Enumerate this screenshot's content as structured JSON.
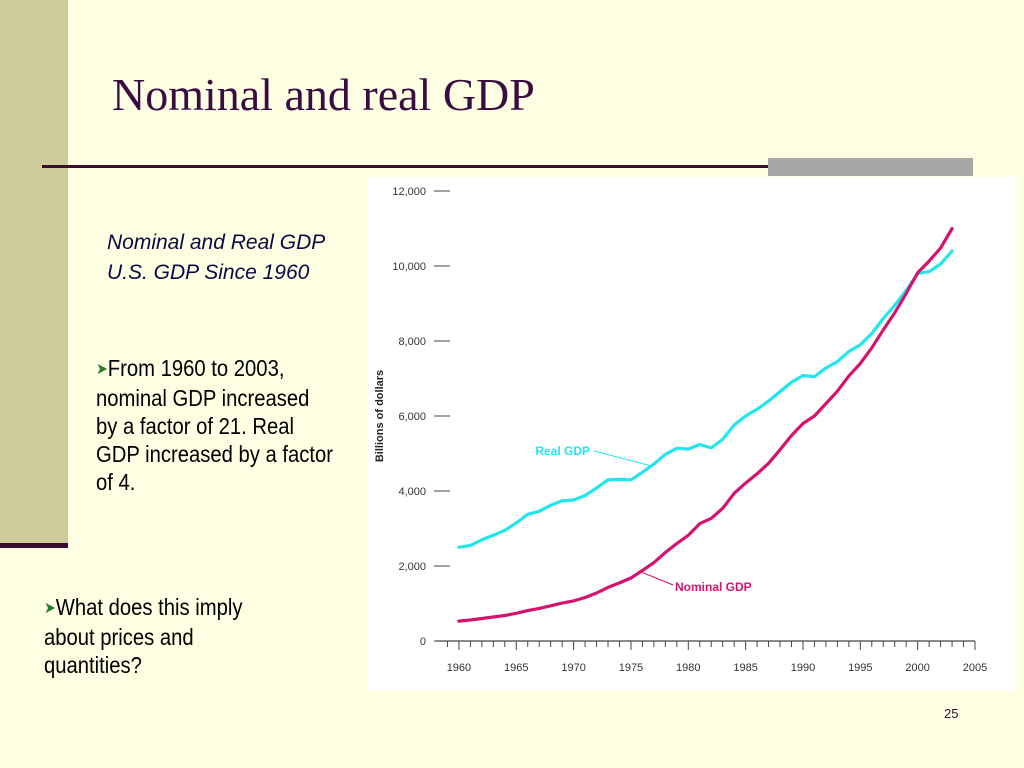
{
  "slide": {
    "title": "Nominal and real GDP",
    "caption": "Nominal and Real GDP U.S. GDP Since 1960",
    "bullets": [
      "From 1960 to 2003, nominal GDP increased by a factor of 21.  Real GDP increased by a factor of 4.",
      "What does this imply about prices and quantities?"
    ],
    "page_number": "25"
  },
  "colors": {
    "real": "#22e6ee",
    "nominal": "#d4136e"
  },
  "chart_data": {
    "type": "line",
    "title": "",
    "xlabel": "",
    "ylabel": "Billions of dollars",
    "xlim": [
      1958,
      2005
    ],
    "ylim": [
      0,
      12000
    ],
    "x_ticks": [
      1960,
      1965,
      1970,
      1975,
      1980,
      1985,
      1990,
      1995,
      2000,
      2005
    ],
    "x_tick_labels": [
      "1960",
      "1965",
      "1970",
      "1975",
      "1980",
      "1985",
      "1990",
      "1995",
      "2000",
      "2005"
    ],
    "y_ticks": [
      0,
      2000,
      4000,
      6000,
      8000,
      10000,
      12000
    ],
    "y_tick_labels": [
      "0",
      "2,000",
      "4,000",
      "6,000",
      "8,000",
      "10,000",
      "12,000"
    ],
    "x": [
      1960,
      1961,
      1962,
      1963,
      1964,
      1965,
      1966,
      1967,
      1968,
      1969,
      1970,
      1971,
      1972,
      1973,
      1974,
      1975,
      1976,
      1977,
      1978,
      1979,
      1980,
      1981,
      1982,
      1983,
      1984,
      1985,
      1986,
      1987,
      1988,
      1989,
      1990,
      1991,
      1992,
      1993,
      1994,
      1995,
      1996,
      1997,
      1998,
      1999,
      2000,
      2001,
      2002,
      2003
    ],
    "series": [
      {
        "name": "Real GDP",
        "color_key": "real",
        "values": [
          2500,
          2550,
          2700,
          2820,
          2950,
          3150,
          3380,
          3460,
          3620,
          3740,
          3760,
          3880,
          4080,
          4300,
          4310,
          4300,
          4500,
          4720,
          4980,
          5140,
          5120,
          5240,
          5150,
          5380,
          5760,
          6000,
          6180,
          6400,
          6650,
          6900,
          7080,
          7050,
          7280,
          7450,
          7720,
          7900,
          8200,
          8600,
          8950,
          9350,
          9800,
          9850,
          10050,
          10400
        ]
      },
      {
        "name": "Nominal GDP",
        "color_key": "nominal",
        "values": [
          530,
          560,
          600,
          640,
          680,
          740,
          810,
          870,
          940,
          1010,
          1070,
          1160,
          1280,
          1430,
          1550,
          1680,
          1880,
          2090,
          2360,
          2600,
          2820,
          3130,
          3270,
          3540,
          3940,
          4210,
          4460,
          4740,
          5100,
          5480,
          5800,
          6000,
          6330,
          6660,
          7070,
          7400,
          7820,
          8300,
          8750,
          9270,
          9820,
          10130,
          10480,
          11000
        ]
      }
    ]
  }
}
